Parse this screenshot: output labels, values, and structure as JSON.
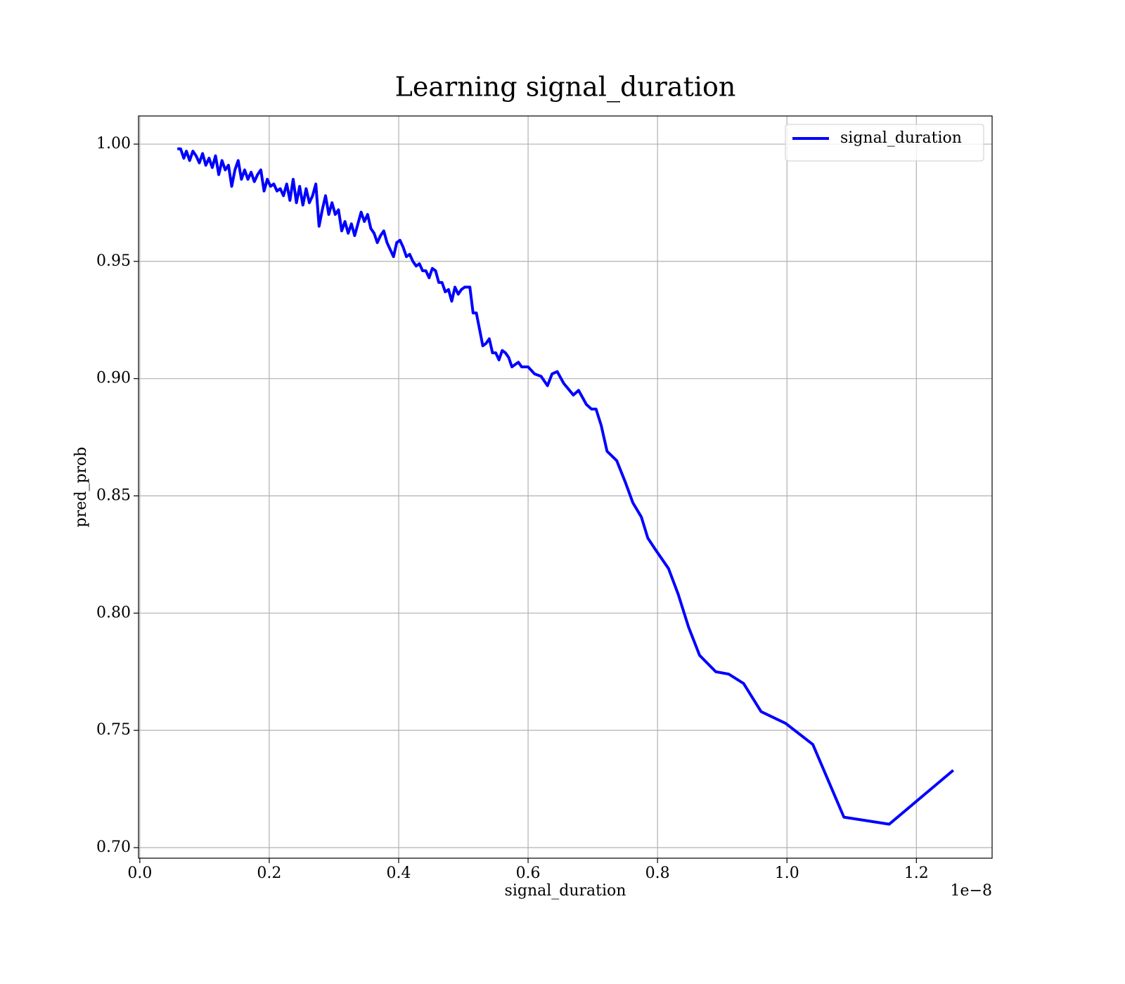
{
  "chart_data": {
    "type": "line",
    "title": "Learning signal_duration",
    "x_label": "signal_duration",
    "y_label": "pred_prob",
    "x_offset_label": "1e−8",
    "x": [
      0.058,
      0.063,
      0.068,
      0.072,
      0.077,
      0.082,
      0.087,
      0.092,
      0.097,
      0.102,
      0.107,
      0.112,
      0.117,
      0.122,
      0.127,
      0.132,
      0.137,
      0.142,
      0.147,
      0.152,
      0.157,
      0.162,
      0.167,
      0.172,
      0.177,
      0.182,
      0.187,
      0.192,
      0.197,
      0.202,
      0.207,
      0.212,
      0.217,
      0.222,
      0.227,
      0.232,
      0.237,
      0.242,
      0.247,
      0.252,
      0.257,
      0.262,
      0.267,
      0.272,
      0.277,
      0.282,
      0.287,
      0.292,
      0.297,
      0.302,
      0.307,
      0.312,
      0.317,
      0.322,
      0.327,
      0.332,
      0.337,
      0.342,
      0.347,
      0.352,
      0.357,
      0.362,
      0.367,
      0.372,
      0.377,
      0.382,
      0.387,
      0.392,
      0.397,
      0.402,
      0.407,
      0.412,
      0.417,
      0.422,
      0.427,
      0.432,
      0.437,
      0.442,
      0.447,
      0.452,
      0.457,
      0.462,
      0.467,
      0.472,
      0.477,
      0.482,
      0.487,
      0.492,
      0.497,
      0.502,
      0.51,
      0.515,
      0.52,
      0.525,
      0.53,
      0.535,
      0.54,
      0.545,
      0.55,
      0.555,
      0.56,
      0.565,
      0.57,
      0.575,
      0.58,
      0.585,
      0.59,
      0.6,
      0.61,
      0.62,
      0.63,
      0.637,
      0.645,
      0.655,
      0.67,
      0.678,
      0.69,
      0.698,
      0.705,
      0.713,
      0.722,
      0.737,
      0.75,
      0.762,
      0.775,
      0.785,
      0.797,
      0.817,
      0.832,
      0.848,
      0.865,
      0.89,
      0.91,
      0.933,
      0.96,
      0.998,
      1.04,
      1.088,
      1.158,
      1.257
    ],
    "series": [
      {
        "name": "signal_duration",
        "color": "#0000ff",
        "values": [
          0.998,
          0.998,
          0.994,
          0.997,
          0.993,
          0.997,
          0.995,
          0.992,
          0.996,
          0.991,
          0.994,
          0.99,
          0.995,
          0.987,
          0.993,
          0.989,
          0.991,
          0.982,
          0.989,
          0.993,
          0.985,
          0.989,
          0.985,
          0.988,
          0.984,
          0.987,
          0.989,
          0.98,
          0.985,
          0.982,
          0.983,
          0.98,
          0.981,
          0.978,
          0.983,
          0.976,
          0.985,
          0.975,
          0.982,
          0.974,
          0.981,
          0.975,
          0.978,
          0.983,
          0.965,
          0.972,
          0.978,
          0.97,
          0.975,
          0.97,
          0.972,
          0.963,
          0.967,
          0.962,
          0.966,
          0.961,
          0.966,
          0.971,
          0.967,
          0.97,
          0.964,
          0.962,
          0.958,
          0.961,
          0.963,
          0.958,
          0.955,
          0.952,
          0.958,
          0.959,
          0.956,
          0.952,
          0.953,
          0.95,
          0.948,
          0.949,
          0.946,
          0.946,
          0.943,
          0.947,
          0.946,
          0.941,
          0.941,
          0.937,
          0.938,
          0.933,
          0.939,
          0.936,
          0.938,
          0.939,
          0.939,
          0.928,
          0.928,
          0.921,
          0.914,
          0.915,
          0.917,
          0.911,
          0.911,
          0.908,
          0.912,
          0.911,
          0.909,
          0.905,
          0.906,
          0.907,
          0.905,
          0.905,
          0.902,
          0.901,
          0.897,
          0.902,
          0.903,
          0.898,
          0.893,
          0.895,
          0.889,
          0.887,
          0.887,
          0.88,
          0.869,
          0.865,
          0.856,
          0.847,
          0.841,
          0.832,
          0.827,
          0.819,
          0.808,
          0.794,
          0.782,
          0.775,
          0.774,
          0.77,
          0.758,
          0.753,
          0.744,
          0.713,
          0.71,
          0.733
        ]
      }
    ],
    "xlim": [
      -0.002,
      1.317
    ],
    "ylim": [
      0.6955,
      1.012
    ],
    "xticks": [
      {
        "value": 0,
        "label": "0.0"
      },
      0.2,
      0.4,
      0.6,
      0.8,
      {
        "value": 1,
        "label": "1.0"
      },
      1.2
    ],
    "yticks": [
      {
        "value": 0.7,
        "label": "0.70"
      },
      0.75,
      {
        "value": 0.8,
        "label": "0.80"
      },
      0.85,
      {
        "value": 0.9,
        "label": "0.90"
      },
      0.95,
      {
        "value": 1,
        "label": "1.00"
      }
    ],
    "grid": true,
    "legend": "upper right"
  }
}
